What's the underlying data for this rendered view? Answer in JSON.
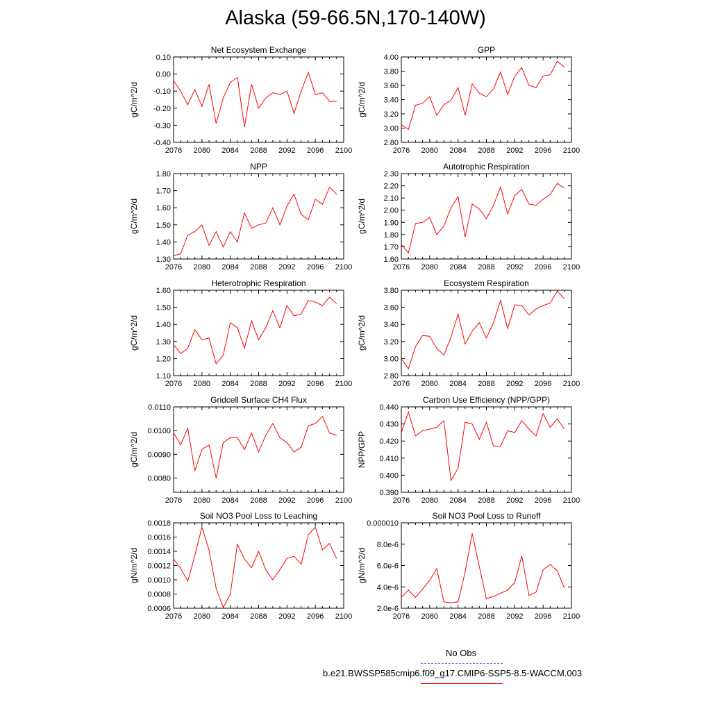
{
  "title": "Alaska (59-66.5N,170-140W)",
  "chart_data": [
    {
      "type": "line",
      "title": "Net Ecosystem Exchange",
      "ylabel": "gC/m^2/d",
      "x": [
        2076,
        2077,
        2078,
        2079,
        2080,
        2081,
        2082,
        2083,
        2084,
        2085,
        2086,
        2087,
        2088,
        2089,
        2090,
        2091,
        2092,
        2093,
        2094,
        2095,
        2096,
        2097,
        2098,
        2099
      ],
      "values": [
        -0.04,
        -0.1,
        -0.18,
        -0.09,
        -0.19,
        -0.06,
        -0.29,
        -0.14,
        -0.05,
        -0.02,
        -0.31,
        -0.06,
        -0.2,
        -0.14,
        -0.11,
        -0.12,
        -0.1,
        -0.23,
        -0.1,
        0.01,
        -0.12,
        -0.11,
        -0.16,
        -0.16
      ],
      "xlim": [
        2076,
        2100
      ],
      "ylim": [
        -0.4,
        0.1
      ],
      "xticks": [
        "2076",
        "2080",
        "2084",
        "2088",
        "2092",
        "2096",
        "2100"
      ],
      "yticks": [
        "-0.40",
        "-0.30",
        "-0.20",
        "-0.10",
        "0.00",
        "0.10"
      ],
      "color": "#ff0000"
    },
    {
      "type": "line",
      "title": "GPP",
      "ylabel": "gC/m^2/d",
      "x": [
        2076,
        2077,
        2078,
        2079,
        2080,
        2081,
        2082,
        2083,
        2084,
        2085,
        2086,
        2087,
        2088,
        2089,
        2090,
        2091,
        2092,
        2093,
        2094,
        2095,
        2096,
        2097,
        2098,
        2099
      ],
      "values": [
        3.05,
        2.98,
        3.32,
        3.35,
        3.44,
        3.18,
        3.33,
        3.39,
        3.57,
        3.18,
        3.62,
        3.49,
        3.44,
        3.55,
        3.79,
        3.47,
        3.73,
        3.85,
        3.6,
        3.57,
        3.73,
        3.75,
        3.94,
        3.86
      ],
      "xlim": [
        2076,
        2100
      ],
      "ylim": [
        2.8,
        4.0
      ],
      "xticks": [
        "2076",
        "2080",
        "2084",
        "2088",
        "2092",
        "2096",
        "2100"
      ],
      "yticks": [
        "2.80",
        "3.00",
        "3.20",
        "3.40",
        "3.60",
        "3.80",
        "4.00"
      ],
      "color": "#ff0000"
    },
    {
      "type": "line",
      "title": "NPP",
      "ylabel": "gC/m^2/d",
      "x": [
        2076,
        2077,
        2078,
        2079,
        2080,
        2081,
        2082,
        2083,
        2084,
        2085,
        2086,
        2087,
        2088,
        2089,
        2090,
        2091,
        2092,
        2093,
        2094,
        2095,
        2096,
        2097,
        2098,
        2099
      ],
      "values": [
        1.32,
        1.33,
        1.44,
        1.46,
        1.5,
        1.38,
        1.46,
        1.37,
        1.46,
        1.4,
        1.57,
        1.48,
        1.5,
        1.51,
        1.6,
        1.5,
        1.61,
        1.68,
        1.56,
        1.53,
        1.65,
        1.62,
        1.72,
        1.68
      ],
      "xlim": [
        2076,
        2100
      ],
      "ylim": [
        1.3,
        1.8
      ],
      "xticks": [
        "2076",
        "2080",
        "2084",
        "2088",
        "2092",
        "2096",
        "2100"
      ],
      "yticks": [
        "1.30",
        "1.40",
        "1.50",
        "1.60",
        "1.70",
        "1.80"
      ],
      "color": "#ff0000"
    },
    {
      "type": "line",
      "title": "Autotrophic Respiration",
      "ylabel": "gC/m^2/d",
      "x": [
        2076,
        2077,
        2078,
        2079,
        2080,
        2081,
        2082,
        2083,
        2084,
        2085,
        2086,
        2087,
        2088,
        2089,
        2090,
        2091,
        2092,
        2093,
        2094,
        2095,
        2096,
        2097,
        2098,
        2099
      ],
      "values": [
        1.72,
        1.65,
        1.89,
        1.9,
        1.94,
        1.8,
        1.87,
        2.02,
        2.11,
        1.78,
        2.05,
        2.01,
        1.93,
        2.04,
        2.19,
        1.97,
        2.12,
        2.17,
        2.05,
        2.04,
        2.09,
        2.13,
        2.22,
        2.18
      ],
      "xlim": [
        2076,
        2100
      ],
      "ylim": [
        1.6,
        2.3
      ],
      "xticks": [
        "2076",
        "2080",
        "2084",
        "2088",
        "2092",
        "2096",
        "2100"
      ],
      "yticks": [
        "1.60",
        "1.70",
        "1.80",
        "1.90",
        "2.00",
        "2.10",
        "2.20",
        "2.30"
      ],
      "color": "#ff0000"
    },
    {
      "type": "line",
      "title": "Heterotrophic Respiration",
      "ylabel": "gC/m^2/d",
      "x": [
        2076,
        2077,
        2078,
        2079,
        2080,
        2081,
        2082,
        2083,
        2084,
        2085,
        2086,
        2087,
        2088,
        2089,
        2090,
        2091,
        2092,
        2093,
        2094,
        2095,
        2096,
        2097,
        2098,
        2099
      ],
      "values": [
        1.28,
        1.23,
        1.26,
        1.37,
        1.31,
        1.32,
        1.17,
        1.22,
        1.41,
        1.38,
        1.26,
        1.42,
        1.31,
        1.38,
        1.48,
        1.38,
        1.51,
        1.45,
        1.46,
        1.54,
        1.53,
        1.51,
        1.56,
        1.52
      ],
      "xlim": [
        2076,
        2100
      ],
      "ylim": [
        1.1,
        1.6
      ],
      "xticks": [
        "2076",
        "2080",
        "2084",
        "2088",
        "2092",
        "2096",
        "2100"
      ],
      "yticks": [
        "1.10",
        "1.20",
        "1.30",
        "1.40",
        "1.50",
        "1.60"
      ],
      "color": "#ff0000"
    },
    {
      "type": "line",
      "title": "Ecosystem Respiration",
      "ylabel": "gC/m^2/d",
      "x": [
        2076,
        2077,
        2078,
        2079,
        2080,
        2081,
        2082,
        2083,
        2084,
        2085,
        2086,
        2087,
        2088,
        2089,
        2090,
        2091,
        2092,
        2093,
        2094,
        2095,
        2096,
        2097,
        2098,
        2099
      ],
      "values": [
        3.0,
        2.88,
        3.14,
        3.27,
        3.26,
        3.12,
        3.04,
        3.25,
        3.52,
        3.17,
        3.32,
        3.42,
        3.24,
        3.42,
        3.68,
        3.35,
        3.63,
        3.62,
        3.51,
        3.58,
        3.62,
        3.65,
        3.79,
        3.7
      ],
      "xlim": [
        2076,
        2100
      ],
      "ylim": [
        2.8,
        3.8
      ],
      "xticks": [
        "2076",
        "2080",
        "2084",
        "2088",
        "2092",
        "2096",
        "2100"
      ],
      "yticks": [
        "2.80",
        "3.00",
        "3.20",
        "3.40",
        "3.60",
        "3.80"
      ],
      "color": "#ff0000"
    },
    {
      "type": "line",
      "title": "Gridcell Surface CH4 Flux",
      "ylabel": "gC/m^2/d",
      "x": [
        2076,
        2077,
        2078,
        2079,
        2080,
        2081,
        2082,
        2083,
        2084,
        2085,
        2086,
        2087,
        2088,
        2089,
        2090,
        2091,
        2092,
        2093,
        2094,
        2095,
        2096,
        2097,
        2098,
        2099
      ],
      "values": [
        0.0099,
        0.0094,
        0.0101,
        0.0083,
        0.0092,
        0.0094,
        0.008,
        0.0095,
        0.0097,
        0.0097,
        0.0092,
        0.0099,
        0.0091,
        0.0098,
        0.0103,
        0.0097,
        0.0095,
        0.0091,
        0.0093,
        0.0102,
        0.0103,
        0.0106,
        0.0099,
        0.0098
      ],
      "xlim": [
        2076,
        2100
      ],
      "ylim": [
        0.0074,
        0.011
      ],
      "xticks": [
        "2076",
        "2080",
        "2084",
        "2088",
        "2092",
        "2096",
        "2100"
      ],
      "yticks": [
        "0.0080",
        "0.0090",
        "0.0100",
        "0.0110"
      ],
      "ytick_values": [
        0.008,
        0.009,
        0.01,
        0.011
      ],
      "color": "#ff0000"
    },
    {
      "type": "line",
      "title": "Carbon Use Efficiency (NPP/GPP)",
      "ylabel": "NPP/GPP",
      "x": [
        2076,
        2077,
        2078,
        2079,
        2080,
        2081,
        2082,
        2083,
        2084,
        2085,
        2086,
        2087,
        2088,
        2089,
        2090,
        2091,
        2092,
        2093,
        2094,
        2095,
        2096,
        2097,
        2098,
        2099
      ],
      "values": [
        0.425,
        0.437,
        0.423,
        0.426,
        0.427,
        0.428,
        0.432,
        0.397,
        0.404,
        0.431,
        0.43,
        0.421,
        0.431,
        0.417,
        0.417,
        0.426,
        0.425,
        0.432,
        0.427,
        0.423,
        0.436,
        0.428,
        0.433,
        0.427
      ],
      "xlim": [
        2076,
        2100
      ],
      "ylim": [
        0.39,
        0.44
      ],
      "xticks": [
        "2076",
        "2080",
        "2084",
        "2088",
        "2092",
        "2096",
        "2100"
      ],
      "yticks": [
        "0.390",
        "0.400",
        "0.410",
        "0.420",
        "0.430",
        "0.440"
      ],
      "color": "#ff0000"
    },
    {
      "type": "line",
      "title": "Soil NO3 Pool Loss to Leaching",
      "ylabel": "gN/m^2/d",
      "x": [
        2076,
        2077,
        2078,
        2079,
        2080,
        2081,
        2082,
        2083,
        2084,
        2085,
        2086,
        2087,
        2088,
        2089,
        2090,
        2091,
        2092,
        2093,
        2094,
        2095,
        2096,
        2097,
        2098,
        2099
      ],
      "values": [
        0.00129,
        0.00116,
        0.00098,
        0.00134,
        0.00174,
        0.00142,
        0.00088,
        0.00061,
        0.0008,
        0.0015,
        0.00129,
        0.00117,
        0.0014,
        0.00114,
        0.001,
        0.00114,
        0.0013,
        0.00133,
        0.00122,
        0.00163,
        0.00174,
        0.00142,
        0.00151,
        0.0013
      ],
      "xlim": [
        2076,
        2100
      ],
      "ylim": [
        0.0006,
        0.0018
      ],
      "xticks": [
        "2076",
        "2080",
        "2084",
        "2088",
        "2092",
        "2096",
        "2100"
      ],
      "yticks": [
        "0.0006",
        "0.0008",
        "0.0010",
        "0.0012",
        "0.0014",
        "0.0016",
        "0.0018"
      ],
      "color": "#ff0000"
    },
    {
      "type": "line",
      "title": "Soil NO3 Pool Loss to Runoff",
      "ylabel": "gN/m^2/d",
      "x": [
        2076,
        2077,
        2078,
        2079,
        2080,
        2081,
        2082,
        2083,
        2084,
        2085,
        2086,
        2087,
        2088,
        2089,
        2090,
        2091,
        2092,
        2093,
        2094,
        2095,
        2096,
        2097,
        2098,
        2099
      ],
      "values": [
        3e-06,
        3.7e-06,
        3e-06,
        3.8e-06,
        4.6e-06,
        5.7e-06,
        2.6e-06,
        2.5e-06,
        2.6e-06,
        5.4e-06,
        9e-06,
        5.9e-06,
        2.9e-06,
        3.1e-06,
        3.4e-06,
        3.7e-06,
        4.4e-06,
        6.9e-06,
        3.2e-06,
        3.5e-06,
        5.6e-06,
        6.1e-06,
        5.5e-06,
        3.9e-06
      ],
      "xlim": [
        2076,
        2100
      ],
      "ylim": [
        2e-06,
        1e-05
      ],
      "xticks": [
        "2076",
        "2080",
        "2084",
        "2088",
        "2092",
        "2096",
        "2100"
      ],
      "yticks": [
        "2.0e-6",
        "4.0e-6",
        "6.0e-6",
        "8.0e-6",
        "0.000010"
      ],
      "ytick_values": [
        2e-06,
        4e-06,
        6e-06,
        8e-06,
        1e-05
      ],
      "color": "#ff0000"
    }
  ],
  "legend": {
    "obs_label": "No Obs",
    "obs_color": "#6666ff",
    "model_label": "b.e21.BWSSP585cmip6.f09_g17.CMIP6-SSP5-8.5-WACCM.003",
    "model_color": "#ff0000"
  }
}
